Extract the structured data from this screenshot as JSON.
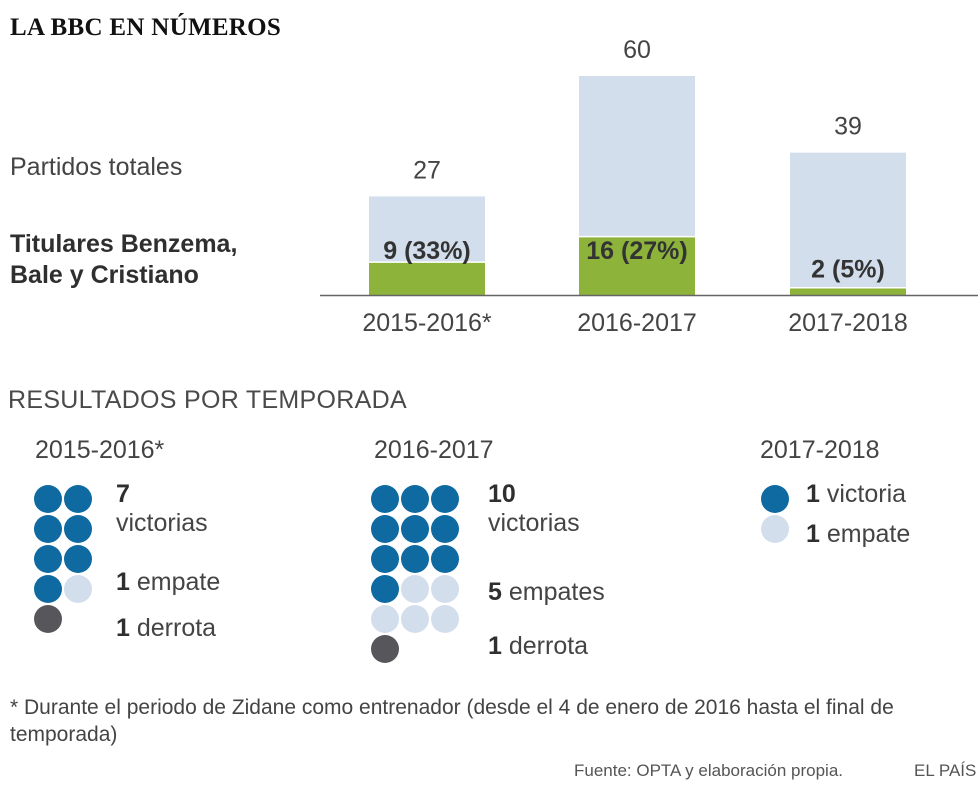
{
  "title": "LA BBC EN NÚMEROS",
  "legend": {
    "total_label": "Partidos totales",
    "starters_line1": "Titulares Benzema,",
    "starters_line2": "Bale y Cristiano"
  },
  "chart_data": {
    "type": "bar",
    "title": "LA BBC EN NÚMEROS",
    "xlabel": "",
    "ylabel": "",
    "ylim": [
      0,
      60
    ],
    "categories": [
      "2015-2016*",
      "2016-2017",
      "2017-2018"
    ],
    "series": [
      {
        "name": "Partidos totales",
        "values": [
          27,
          60,
          39
        ],
        "color": "#d3deed",
        "labels": [
          "27",
          "60",
          "39"
        ]
      },
      {
        "name": "Titulares Benzema, Bale y Cristiano",
        "values": [
          9,
          16,
          2
        ],
        "color": "#8db33a",
        "labels": [
          "9 (33%)",
          "16 (27%)",
          "2 (5%)"
        ]
      }
    ]
  },
  "results": {
    "title": "RESULTADOS POR TEMPORADA",
    "colors": {
      "win": "#0e6aa0",
      "draw": "#d3deed",
      "loss": "#57575b"
    },
    "seasons": [
      {
        "season": "2015-2016*",
        "wins": 7,
        "draws": 1,
        "losses": 1,
        "win_num": "7",
        "win_text": "victorias",
        "draw_num": "1",
        "draw_text": "empate",
        "loss_num": "1",
        "loss_text": "derrota"
      },
      {
        "season": "2016-2017",
        "wins": 10,
        "draws": 5,
        "losses": 1,
        "win_num": "10",
        "win_text": "victorias",
        "draw_num": "5",
        "draw_text": "empates",
        "loss_num": "1",
        "loss_text": "derrota"
      },
      {
        "season": "2017-2018",
        "wins": 1,
        "draws": 1,
        "losses": 0,
        "win_num": "1",
        "win_text": "victoria",
        "draw_num": "1",
        "draw_text": "empate"
      }
    ]
  },
  "footnote": "* Durante el periodo de Zidane como entrenador (desde el 4 de enero de 2016 hasta el final de temporada)",
  "source": "Fuente: OPTA y elaboración propia.",
  "brand": "EL PAÍS"
}
